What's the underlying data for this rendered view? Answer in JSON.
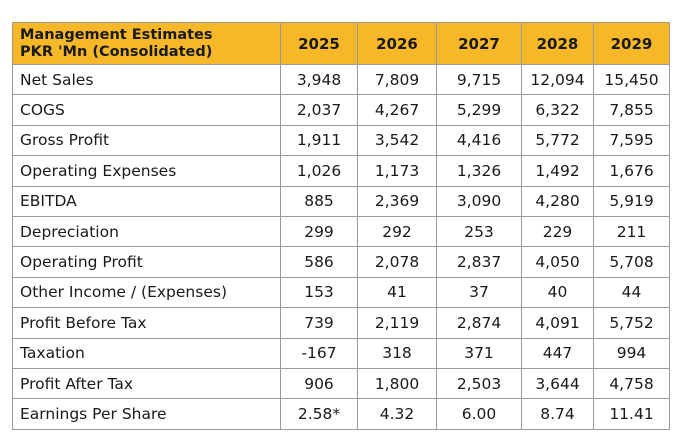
{
  "table": {
    "header": {
      "title_line1": "Management Estimates",
      "title_line2": "PKR 'Mn (Consolidated)",
      "years": [
        "2025",
        "2026",
        "2027",
        "2028",
        "2029"
      ]
    },
    "rows": [
      {
        "label": "Net Sales",
        "values": [
          "3,948",
          "7,809",
          "9,715",
          "12,094",
          "15,450"
        ]
      },
      {
        "label": "COGS",
        "values": [
          "2,037",
          "4,267",
          "5,299",
          "6,322",
          "7,855"
        ]
      },
      {
        "label": "Gross Profit",
        "values": [
          "1,911",
          "3,542",
          "4,416",
          "5,772",
          "7,595"
        ]
      },
      {
        "label": "Operating Expenses",
        "values": [
          "1,026",
          "1,173",
          "1,326",
          "1,492",
          "1,676"
        ]
      },
      {
        "label": "EBITDA",
        "values": [
          "885",
          "2,369",
          "3,090",
          "4,280",
          "5,919"
        ]
      },
      {
        "label": "Depreciation",
        "values": [
          "299",
          "292",
          "253",
          "229",
          "211"
        ]
      },
      {
        "label": "Operating Profit",
        "values": [
          "586",
          "2,078",
          "2,837",
          "4,050",
          "5,708"
        ]
      },
      {
        "label": "Other Income / (Expenses)",
        "values": [
          "153",
          "41",
          "37",
          "40",
          "44"
        ]
      },
      {
        "label": "Profit Before Tax",
        "values": [
          "739",
          "2,119",
          "2,874",
          "4,091",
          "5,752"
        ]
      },
      {
        "label": "Taxation",
        "values": [
          "-167",
          "318",
          "371",
          "447",
          "994"
        ]
      },
      {
        "label": "Profit After Tax",
        "values": [
          "906",
          "1,800",
          "2,503",
          "3,644",
          "4,758"
        ]
      },
      {
        "label": "Earnings Per Share",
        "values": [
          "2.58*",
          "4.32",
          "6.00",
          "8.74",
          "11.41"
        ]
      }
    ],
    "colors": {
      "header_background": "#f6b728",
      "border": "#9a9a9a",
      "text": "#1a1a1a"
    }
  }
}
